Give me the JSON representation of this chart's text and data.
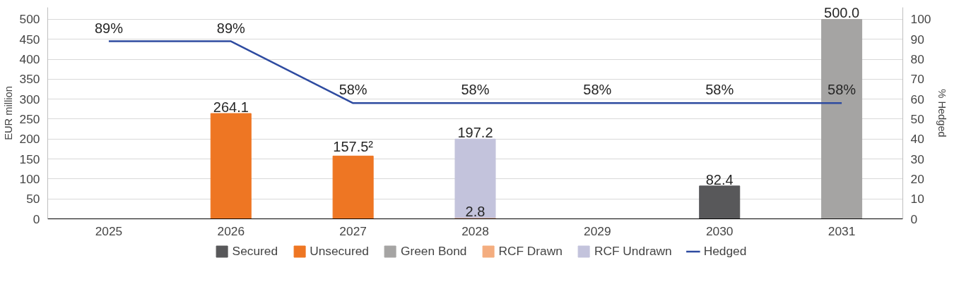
{
  "chart_data": {
    "type": "bar",
    "stacked": true,
    "ylabel": "EUR million",
    "y2label": "% Hedged",
    "categories": [
      "2025",
      "2026",
      "2027",
      "2028",
      "2029",
      "2030",
      "2031"
    ],
    "series": [
      {
        "name": "Secured",
        "color": "#58585a",
        "values": [
          null,
          null,
          null,
          null,
          null,
          82.4,
          null
        ],
        "value_labels": [
          null,
          null,
          null,
          null,
          null,
          "82.4",
          null
        ]
      },
      {
        "name": "Unsecured",
        "color": "#ee7623",
        "values": [
          null,
          264.1,
          157.5,
          null,
          null,
          null,
          null
        ],
        "value_labels": [
          null,
          "264.1",
          "157.5²",
          null,
          null,
          null,
          null
        ]
      },
      {
        "name": "Green Bond",
        "color": "#a5a4a3",
        "values": [
          null,
          null,
          null,
          null,
          null,
          null,
          500.0
        ],
        "value_labels": [
          null,
          null,
          null,
          null,
          null,
          null,
          "500.0"
        ]
      },
      {
        "name": "RCF Drawn",
        "color": "#f4ad7f",
        "values": [
          null,
          null,
          null,
          2.8,
          null,
          null,
          null
        ],
        "value_labels": [
          null,
          null,
          null,
          "2.8",
          null,
          null,
          null
        ]
      },
      {
        "name": "RCF Undrawn",
        "color": "#c3c3dc",
        "values": [
          null,
          null,
          null,
          197.2,
          null,
          null,
          null
        ],
        "value_labels": [
          null,
          null,
          null,
          "197.2",
          null,
          null,
          null
        ]
      },
      {
        "name": "Hedged",
        "type": "line",
        "axis": "y2",
        "color": "#2e4ba0",
        "values": [
          89,
          89,
          58,
          58,
          58,
          58,
          58
        ],
        "value_labels": [
          "89%",
          "89%",
          "58%",
          "58%",
          "58%",
          "58%",
          "58%"
        ]
      }
    ],
    "ylim": [
      0,
      530
    ],
    "yticks": [
      0,
      50,
      100,
      150,
      200,
      250,
      300,
      350,
      400,
      450,
      500
    ],
    "y2lim": [
      0,
      106
    ],
    "y2ticks": [
      0,
      10,
      20,
      30,
      40,
      50,
      60,
      70,
      80,
      90,
      100
    ],
    "grid": "y",
    "legend": "bottom"
  }
}
